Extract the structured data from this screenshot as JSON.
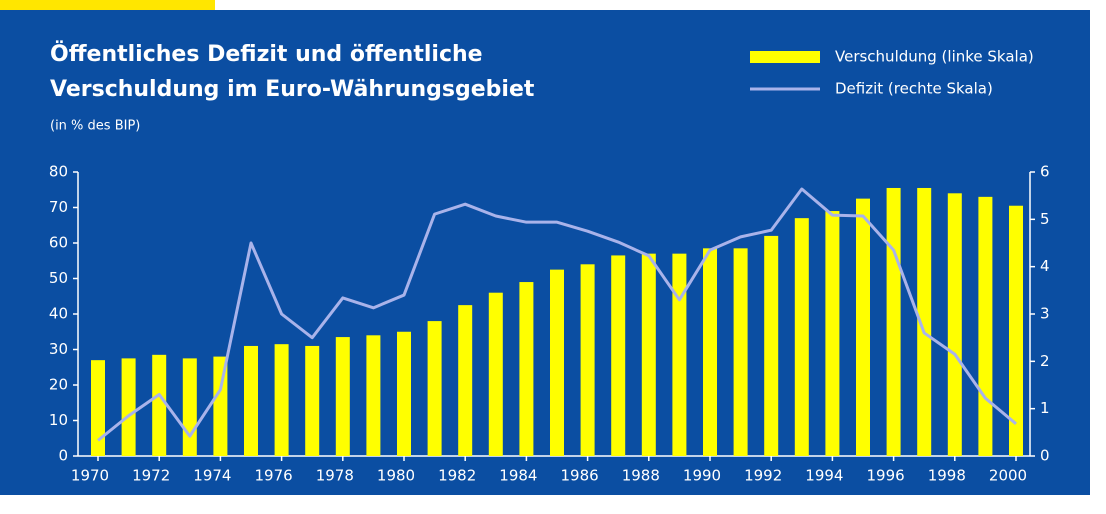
{
  "chart_data": {
    "type": "bar-line",
    "title": [
      "Öffentliches Defizit und öffentliche",
      "Verschuldung im Euro-Währungsgebiet"
    ],
    "subtitle": "(in % des BIP)",
    "x": [
      1970,
      1971,
      1972,
      1973,
      1974,
      1975,
      1976,
      1977,
      1978,
      1979,
      1980,
      1981,
      1982,
      1983,
      1984,
      1985,
      1986,
      1987,
      1988,
      1989,
      1990,
      1991,
      1992,
      1993,
      1994,
      1995,
      1996,
      1997,
      1998,
      1999,
      2000
    ],
    "xlim": [
      1970,
      2000
    ],
    "xticks": [
      1970,
      1972,
      1974,
      1976,
      1978,
      1980,
      1982,
      1984,
      1986,
      1988,
      1990,
      1992,
      1994,
      1996,
      1998,
      2000
    ],
    "series": [
      {
        "name": "Verschuldung (linke Skala)",
        "type": "bar",
        "color": "#ffff00",
        "values": [
          27,
          27.5,
          28.5,
          27.5,
          28,
          31,
          31.5,
          31,
          33.5,
          34,
          35,
          38,
          42.5,
          46,
          49,
          52.5,
          54,
          56.5,
          57,
          57,
          58.5,
          58.5,
          62,
          67,
          69,
          72.5,
          75.5,
          75.5,
          74,
          73,
          70.5
        ]
      },
      {
        "name": "Defizit (rechte Skala)",
        "type": "line",
        "axis": "y2",
        "color": "#a9b3ea",
        "values": [
          0.33,
          0.85,
          1.3,
          0.42,
          1.4,
          4.5,
          3.0,
          2.5,
          3.34,
          3.13,
          3.4,
          5.11,
          5.32,
          5.07,
          4.94,
          4.94,
          4.75,
          4.52,
          4.23,
          3.3,
          4.35,
          4.63,
          4.77,
          5.64,
          5.09,
          5.07,
          4.35,
          2.6,
          2.15,
          1.22,
          0.68
        ]
      }
    ],
    "ylim": [
      0,
      80
    ],
    "yticks": [
      0,
      10,
      20,
      30,
      40,
      50,
      60,
      70,
      80
    ],
    "y2lim": [
      0,
      6
    ],
    "y2ticks": [
      0,
      1,
      2,
      3,
      4,
      5,
      6
    ],
    "legend": "upper right"
  }
}
